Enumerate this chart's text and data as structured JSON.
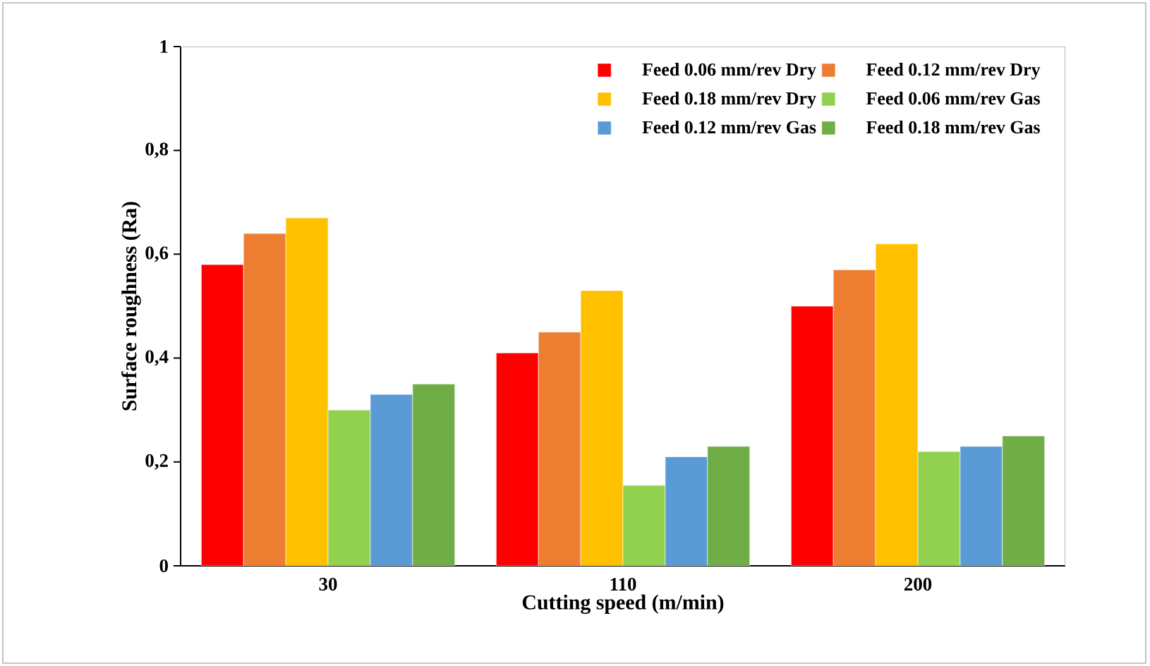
{
  "chart_data": {
    "type": "bar",
    "xlabel": "Cutting speed (m/min)",
    "ylabel": "Surface roughness (Ra)",
    "categories": [
      "30",
      "110",
      "200"
    ],
    "series": [
      {
        "name": "Feed 0.06 mm/rev Dry",
        "color": "#ff0000",
        "values": [
          0.58,
          0.41,
          0.5
        ]
      },
      {
        "name": "Feed 0.12 mm/rev Dry",
        "color": "#ed7d31",
        "values": [
          0.64,
          0.45,
          0.57
        ]
      },
      {
        "name": "Feed 0.18 mm/rev Dry",
        "color": "#ffc000",
        "values": [
          0.67,
          0.53,
          0.62
        ]
      },
      {
        "name": "Feed 0.06 mm/rev Gas",
        "color": "#92d050",
        "values": [
          0.3,
          0.155,
          0.22
        ]
      },
      {
        "name": "Feed 0.12 mm/rev Gas",
        "color": "#5b9bd5",
        "values": [
          0.33,
          0.21,
          0.23
        ]
      },
      {
        "name": "Feed 0.18 mm/rev Gas",
        "color": "#70ad47",
        "values": [
          0.35,
          0.23,
          0.25
        ]
      }
    ],
    "ylim": [
      0,
      1
    ],
    "yticks": [
      0,
      {
        "value": 0.2,
        "label": "0,2"
      },
      {
        "value": 0.4,
        "label": "0,4"
      },
      {
        "value": 0.6,
        "label": "0,6"
      },
      {
        "value": 0.8,
        "label": "0,8"
      },
      1
    ],
    "grid": false,
    "legend": "top right"
  }
}
